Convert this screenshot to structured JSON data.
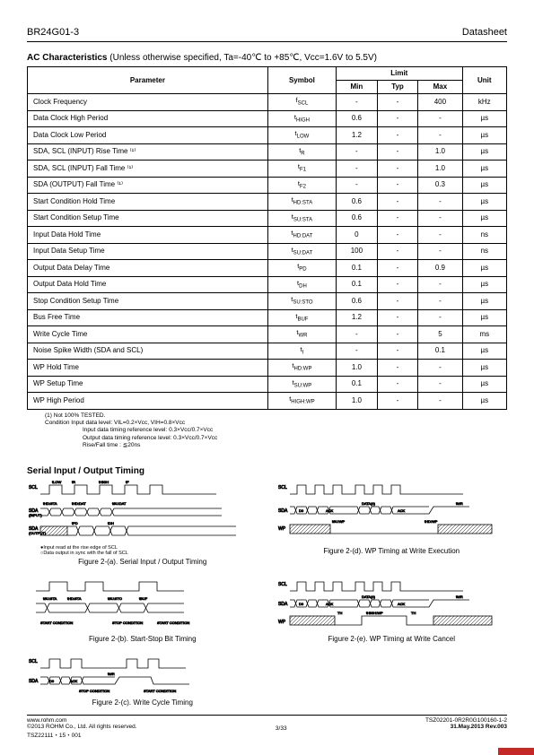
{
  "header": {
    "part": "BR24G01-3",
    "doc": "Datasheet"
  },
  "ac": {
    "title_bold": "AC Characteristics",
    "title_rest": " (Unless otherwise specified, Ta=-40℃  to +85℃, Vcc=1.6V to 5.5V)",
    "cols": {
      "param": "Parameter",
      "symbol": "Symbol",
      "limit": "Limit",
      "min": "Min",
      "typ": "Typ",
      "max": "Max",
      "unit": "Unit"
    },
    "rows": [
      {
        "p": "Clock Frequency",
        "s": "f",
        "sub": "SCL",
        "min": "-",
        "typ": "-",
        "max": "400",
        "u": "kHz"
      },
      {
        "p": "Data Clock High Period",
        "s": "t",
        "sub": "HIGH",
        "min": "0.6",
        "typ": "-",
        "max": "-",
        "u": "µs"
      },
      {
        "p": "Data Clock Low Period",
        "s": "t",
        "sub": "LOW",
        "min": "1.2",
        "typ": "-",
        "max": "-",
        "u": "µs"
      },
      {
        "p": "SDA, SCL (INPUT) Rise Time ⁽¹⁾",
        "s": "t",
        "sub": "R",
        "min": "-",
        "typ": "-",
        "max": "1.0",
        "u": "µs"
      },
      {
        "p": "SDA, SCL (INPUT) Fall Time ⁽¹⁾",
        "s": "t",
        "sub": "F1",
        "min": "-",
        "typ": "-",
        "max": "1.0",
        "u": "µs"
      },
      {
        "p": "SDA (OUTPUT) Fall Time ⁽¹⁾",
        "s": "t",
        "sub": "F2",
        "min": "-",
        "typ": "-",
        "max": "0.3",
        "u": "µs"
      },
      {
        "p": "Start Condition Hold Time",
        "s": "t",
        "sub": "HD:STA",
        "min": "0.6",
        "typ": "-",
        "max": "-",
        "u": "µs"
      },
      {
        "p": "Start Condition Setup Time",
        "s": "t",
        "sub": "SU:STA",
        "min": "0.6",
        "typ": "-",
        "max": "-",
        "u": "µs"
      },
      {
        "p": "Input Data Hold Time",
        "s": "t",
        "sub": "HD:DAT",
        "min": "0",
        "typ": "-",
        "max": "-",
        "u": "ns"
      },
      {
        "p": "Input Data Setup Time",
        "s": "t",
        "sub": "SU:DAT",
        "min": "100",
        "typ": "-",
        "max": "-",
        "u": "ns"
      },
      {
        "p": "Output Data Delay Time",
        "s": "t",
        "sub": "PD",
        "min": "0.1",
        "typ": "-",
        "max": "0.9",
        "u": "µs"
      },
      {
        "p": "Output Data Hold Time",
        "s": "t",
        "sub": "DH",
        "min": "0.1",
        "typ": "-",
        "max": "-",
        "u": "µs"
      },
      {
        "p": "Stop Condition Setup Time",
        "s": "t",
        "sub": "SU:STO",
        "min": "0.6",
        "typ": "-",
        "max": "-",
        "u": "µs"
      },
      {
        "p": "Bus Free Time",
        "s": "t",
        "sub": "BUF",
        "min": "1.2",
        "typ": "-",
        "max": "-",
        "u": "µs"
      },
      {
        "p": "Write Cycle Time",
        "s": "t",
        "sub": "WR",
        "min": "-",
        "typ": "-",
        "max": "5",
        "u": "ms"
      },
      {
        "p": "Noise Spike Width (SDA and SCL)",
        "s": "t",
        "sub": "I",
        "min": "-",
        "typ": "-",
        "max": "0.1",
        "u": "µs"
      },
      {
        "p": "WP Hold Time",
        "s": "t",
        "sub": "HD:WP",
        "min": "1.0",
        "typ": "-",
        "max": "-",
        "u": "µs"
      },
      {
        "p": "WP Setup Time",
        "s": "t",
        "sub": "SU:WP",
        "min": "0.1",
        "typ": "-",
        "max": "-",
        "u": "µs"
      },
      {
        "p": "WP High Period",
        "s": "t",
        "sub": "HIGH:WP",
        "min": "1.0",
        "typ": "-",
        "max": "-",
        "u": "µs"
      }
    ],
    "note1": "(1)  Not 100% TESTED.",
    "note2": "Condition   Input data level: V",
    "note2b": "IL=0.2×Vcc, VIH=0.8×Vcc",
    "note3": "Input data timing reference level: 0.3×Vcc/0.7×Vcc",
    "note4": "Output data timing reference level: 0.3×Vcc/0.7×Vcc",
    "note5": "Rise/Fall time : ≦20ns"
  },
  "timing": {
    "title": "Serial Input / Output Timing",
    "captions": {
      "a": "Figure 2-(a). Serial Input / Output Timing",
      "aNote": "●Input read at the rise edge of SCL\n○Data output in sync with the fall of SCL",
      "b": "Figure 2-(b). Start-Stop Bit Timing",
      "c": "Figure 2-(c). Write Cycle Timing",
      "d": "Figure 2-(d). WP Timing at Write Execution",
      "e": "Figure 2-(e). WP Timing at Write Cancel"
    }
  },
  "footer": {
    "url": "www.rohm.com",
    "copy": "©2013 ROHM Co., Ltd. All rights reserved.",
    "tsz": "TSZ22111・15・001",
    "page": "3/33",
    "code": "TSZ02201-0R2R0G100160-1-2",
    "date": "31.May.2013 Rev.003"
  },
  "style": {
    "stroke": "#000000",
    "fill_hatch": "#000000"
  }
}
